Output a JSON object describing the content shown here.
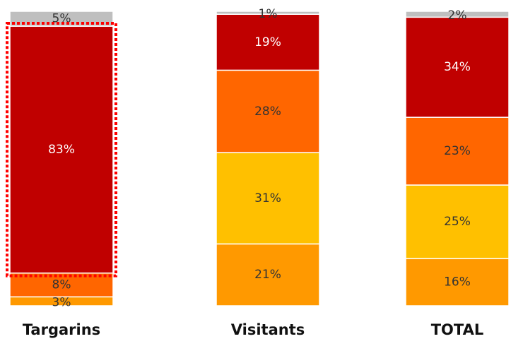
{
  "chart_data": {
    "type": "bar",
    "stacked": true,
    "percent": true,
    "categories": [
      "Targarins",
      "Visitants",
      "TOTAL"
    ],
    "series": [
      {
        "values": [
          3,
          21,
          16
        ],
        "color": "#FF9900"
      },
      {
        "values": [
          0,
          31,
          25
        ],
        "color": "#FFC000"
      },
      {
        "values": [
          8,
          28,
          23
        ],
        "color": "#FF6600"
      },
      {
        "values": [
          83,
          19,
          34
        ],
        "color": "#C00000"
      },
      {
        "values": [
          5,
          1,
          2
        ],
        "color": "#BFBFBF"
      }
    ],
    "data_labels": [
      [
        "3%",
        "21%",
        "16%"
      ],
      [
        "",
        "31%",
        "25%"
      ],
      [
        "8%",
        "28%",
        "23%"
      ],
      [
        "83%",
        "19%",
        "34%"
      ],
      [
        "5%",
        "1%",
        "2%"
      ]
    ],
    "ylim": [
      0,
      100
    ],
    "grid": false,
    "highlight": {
      "category": "Targarins",
      "segment_index": 3,
      "style": "dotted",
      "color": "#FF0000"
    }
  }
}
